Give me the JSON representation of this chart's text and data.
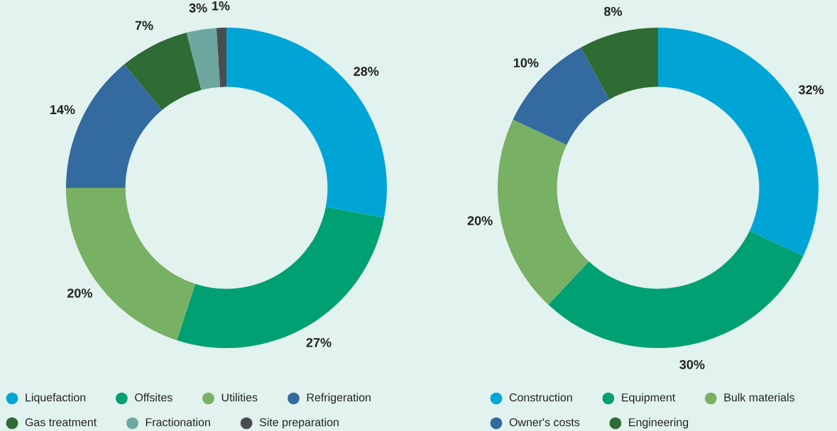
{
  "chart_data": [
    {
      "type": "donut",
      "categories": [
        "Liquefaction",
        "Offsites",
        "Utilities",
        "Refrigeration",
        "Gas treatment",
        "Fractionation",
        "Site preparation"
      ],
      "values": [
        28,
        27,
        20,
        14,
        7,
        3,
        1
      ],
      "value_labels": [
        "28%",
        "27%",
        "20%",
        "14%",
        "7%",
        "3%",
        "1%"
      ],
      "colors": [
        "#00a5d6",
        "#00a073",
        "#78b064",
        "#336a9f",
        "#2e6b35",
        "#6ea7a0",
        "#4a4d50"
      ],
      "legend": "bottom"
    },
    {
      "type": "donut",
      "categories": [
        "Construction",
        "Equipment",
        "Bulk materials",
        "Owner's costs",
        "Engineering"
      ],
      "values": [
        32,
        30,
        20,
        10,
        8
      ],
      "value_labels": [
        "32%",
        "30%",
        "20%",
        "10%",
        "8%"
      ],
      "colors": [
        "#00a5d6",
        "#00a073",
        "#78b064",
        "#336a9f",
        "#2e6b35"
      ],
      "legend": "bottom"
    }
  ]
}
